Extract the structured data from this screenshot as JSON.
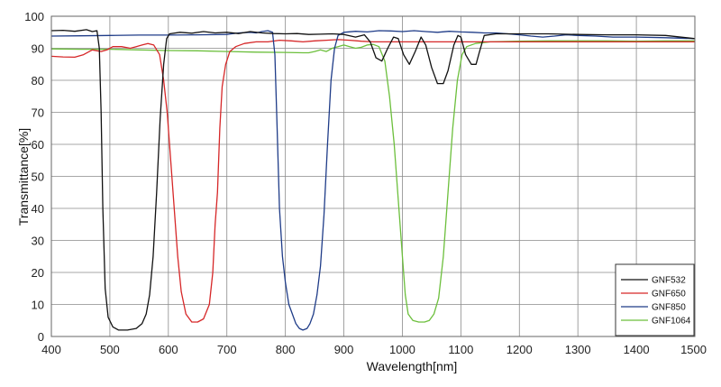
{
  "chart_data": {
    "type": "line",
    "title": "",
    "xlabel": "Wavelength[nm]",
    "ylabel": "Transmittance[%]",
    "xlim": [
      400,
      1500
    ],
    "ylim": [
      0,
      100
    ],
    "x_ticks": [
      400,
      500,
      600,
      700,
      800,
      900,
      1000,
      1100,
      1200,
      1300,
      1400,
      1500
    ],
    "y_ticks": [
      0,
      10,
      20,
      30,
      40,
      50,
      60,
      70,
      80,
      90,
      100
    ],
    "grid": true,
    "legend_position": "bottom-right",
    "series": [
      {
        "name": "GNF532",
        "color": "#111111",
        "points": [
          [
            400,
            95.5
          ],
          [
            420,
            95.6
          ],
          [
            440,
            95.3
          ],
          [
            460,
            95.8
          ],
          [
            470,
            95.2
          ],
          [
            478,
            95.5
          ],
          [
            482,
            90
          ],
          [
            485,
            70
          ],
          [
            488,
            40
          ],
          [
            492,
            15
          ],
          [
            497,
            6
          ],
          [
            505,
            3
          ],
          [
            515,
            2
          ],
          [
            530,
            2
          ],
          [
            545,
            2.5
          ],
          [
            555,
            4
          ],
          [
            562,
            7
          ],
          [
            568,
            13
          ],
          [
            574,
            25
          ],
          [
            580,
            45
          ],
          [
            586,
            68
          ],
          [
            592,
            85
          ],
          [
            597,
            93
          ],
          [
            602,
            94.5
          ],
          [
            620,
            95
          ],
          [
            640,
            94.7
          ],
          [
            660,
            95.2
          ],
          [
            680,
            94.8
          ],
          [
            700,
            95
          ],
          [
            720,
            94.6
          ],
          [
            740,
            95.2
          ],
          [
            760,
            94.8
          ],
          [
            780,
            94.6
          ],
          [
            800,
            94.5
          ],
          [
            820,
            94.6
          ],
          [
            840,
            94.3
          ],
          [
            860,
            94.4
          ],
          [
            880,
            94.5
          ],
          [
            900,
            94.3
          ],
          [
            920,
            93.5
          ],
          [
            935,
            94.2
          ],
          [
            945,
            92
          ],
          [
            955,
            87
          ],
          [
            965,
            86
          ],
          [
            975,
            90
          ],
          [
            985,
            93.5
          ],
          [
            993,
            93
          ],
          [
            1002,
            88
          ],
          [
            1012,
            85
          ],
          [
            1022,
            89
          ],
          [
            1032,
            93.5
          ],
          [
            1040,
            91
          ],
          [
            1050,
            84
          ],
          [
            1060,
            79
          ],
          [
            1070,
            79
          ],
          [
            1078,
            83
          ],
          [
            1088,
            91
          ],
          [
            1095,
            94
          ],
          [
            1100,
            93.5
          ],
          [
            1108,
            88
          ],
          [
            1118,
            85
          ],
          [
            1126,
            85
          ],
          [
            1132,
            89
          ],
          [
            1140,
            94
          ],
          [
            1160,
            94.5
          ],
          [
            1200,
            94.5
          ],
          [
            1250,
            94.5
          ],
          [
            1300,
            94.3
          ],
          [
            1350,
            94.2
          ],
          [
            1400,
            94.2
          ],
          [
            1450,
            94
          ],
          [
            1500,
            93
          ]
        ]
      },
      {
        "name": "GNF650",
        "color": "#d62728",
        "points": [
          [
            400,
            87.5
          ],
          [
            420,
            87.3
          ],
          [
            440,
            87.2
          ],
          [
            455,
            88
          ],
          [
            470,
            89.5
          ],
          [
            485,
            89
          ],
          [
            495,
            89.5
          ],
          [
            505,
            90.5
          ],
          [
            520,
            90.5
          ],
          [
            535,
            90
          ],
          [
            545,
            90.5
          ],
          [
            555,
            91
          ],
          [
            565,
            91.5
          ],
          [
            575,
            91
          ],
          [
            585,
            88
          ],
          [
            592,
            80
          ],
          [
            598,
            70
          ],
          [
            604,
            55
          ],
          [
            610,
            40
          ],
          [
            616,
            25
          ],
          [
            622,
            14
          ],
          [
            630,
            7
          ],
          [
            640,
            4.5
          ],
          [
            650,
            4.5
          ],
          [
            660,
            5.5
          ],
          [
            670,
            10
          ],
          [
            676,
            20
          ],
          [
            680,
            35
          ],
          [
            684,
            45
          ],
          [
            688,
            65
          ],
          [
            692,
            78
          ],
          [
            698,
            85
          ],
          [
            705,
            89
          ],
          [
            715,
            90.5
          ],
          [
            730,
            91.5
          ],
          [
            750,
            92
          ],
          [
            770,
            92
          ],
          [
            790,
            92.5
          ],
          [
            810,
            92.3
          ],
          [
            830,
            92
          ],
          [
            850,
            92.3
          ],
          [
            870,
            92.5
          ],
          [
            890,
            92.7
          ],
          [
            910,
            92.5
          ],
          [
            930,
            92.2
          ],
          [
            950,
            92
          ],
          [
            980,
            92
          ],
          [
            1000,
            92
          ],
          [
            1050,
            92
          ],
          [
            1100,
            92
          ],
          [
            1150,
            92
          ],
          [
            1200,
            92
          ],
          [
            1250,
            92
          ],
          [
            1300,
            92
          ],
          [
            1350,
            92
          ],
          [
            1400,
            92
          ],
          [
            1450,
            92
          ],
          [
            1500,
            92
          ]
        ]
      },
      {
        "name": "GNF850",
        "color": "#1f3c88",
        "points": [
          [
            400,
            93.8
          ],
          [
            450,
            93.9
          ],
          [
            500,
            94
          ],
          [
            550,
            94.1
          ],
          [
            600,
            94.1
          ],
          [
            650,
            94.2
          ],
          [
            700,
            94.3
          ],
          [
            720,
            94.8
          ],
          [
            740,
            95
          ],
          [
            750,
            94.8
          ],
          [
            760,
            95.2
          ],
          [
            770,
            95.5
          ],
          [
            778,
            95
          ],
          [
            782,
            88
          ],
          [
            786,
            65
          ],
          [
            790,
            40
          ],
          [
            795,
            25
          ],
          [
            800,
            17
          ],
          [
            806,
            10
          ],
          [
            812,
            7
          ],
          [
            818,
            4
          ],
          [
            824,
            2.5
          ],
          [
            830,
            2
          ],
          [
            837,
            2.5
          ],
          [
            842,
            4
          ],
          [
            848,
            7
          ],
          [
            854,
            13
          ],
          [
            860,
            22
          ],
          [
            866,
            38
          ],
          [
            872,
            60
          ],
          [
            878,
            80
          ],
          [
            884,
            90
          ],
          [
            890,
            94
          ],
          [
            900,
            95
          ],
          [
            920,
            95.3
          ],
          [
            940,
            95.1
          ],
          [
            960,
            95.5
          ],
          [
            980,
            95.4
          ],
          [
            1000,
            95.2
          ],
          [
            1020,
            95.5
          ],
          [
            1040,
            95.2
          ],
          [
            1060,
            95
          ],
          [
            1080,
            95.3
          ],
          [
            1100,
            95.1
          ],
          [
            1120,
            95
          ],
          [
            1140,
            94.8
          ],
          [
            1160,
            94.8
          ],
          [
            1180,
            94.5
          ],
          [
            1200,
            94.2
          ],
          [
            1220,
            93.8
          ],
          [
            1240,
            93.5
          ],
          [
            1260,
            93.8
          ],
          [
            1280,
            94.2
          ],
          [
            1300,
            94
          ],
          [
            1330,
            93.8
          ],
          [
            1360,
            93.5
          ],
          [
            1400,
            93.5
          ],
          [
            1450,
            93.3
          ],
          [
            1500,
            93
          ]
        ]
      },
      {
        "name": "GNF1064",
        "color": "#6cbf3c",
        "points": [
          [
            400,
            89.8
          ],
          [
            450,
            89.7
          ],
          [
            500,
            89.7
          ],
          [
            550,
            89.5
          ],
          [
            600,
            89.3
          ],
          [
            650,
            89.2
          ],
          [
            700,
            89
          ],
          [
            750,
            88.8
          ],
          [
            800,
            88.7
          ],
          [
            830,
            88.6
          ],
          [
            840,
            88.6
          ],
          [
            850,
            89
          ],
          [
            860,
            89.5
          ],
          [
            870,
            89
          ],
          [
            880,
            90
          ],
          [
            890,
            90.5
          ],
          [
            900,
            91
          ],
          [
            910,
            90.5
          ],
          [
            920,
            90
          ],
          [
            930,
            90.3
          ],
          [
            940,
            91
          ],
          [
            950,
            91.2
          ],
          [
            960,
            90.5
          ],
          [
            970,
            86
          ],
          [
            978,
            75
          ],
          [
            986,
            60
          ],
          [
            994,
            40
          ],
          [
            1000,
            25
          ],
          [
            1005,
            13
          ],
          [
            1010,
            7
          ],
          [
            1018,
            5
          ],
          [
            1028,
            4.5
          ],
          [
            1038,
            4.5
          ],
          [
            1046,
            5
          ],
          [
            1054,
            7
          ],
          [
            1062,
            12
          ],
          [
            1070,
            25
          ],
          [
            1078,
            45
          ],
          [
            1086,
            65
          ],
          [
            1094,
            80
          ],
          [
            1102,
            88
          ],
          [
            1110,
            90.5
          ],
          [
            1125,
            91.5
          ],
          [
            1150,
            92
          ],
          [
            1200,
            92.2
          ],
          [
            1250,
            92.3
          ],
          [
            1300,
            92.3
          ],
          [
            1350,
            92.3
          ],
          [
            1400,
            92.2
          ],
          [
            1450,
            92.3
          ],
          [
            1500,
            92.3
          ]
        ]
      }
    ]
  }
}
